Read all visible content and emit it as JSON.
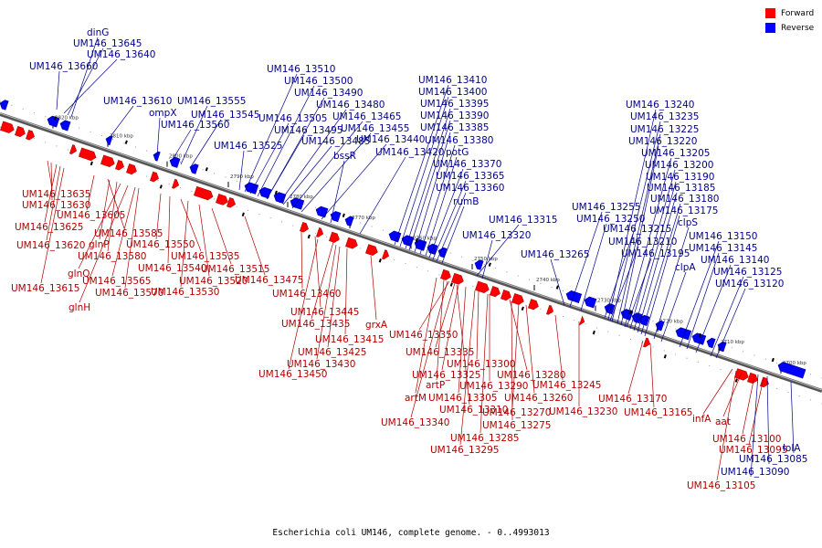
{
  "legend": [
    {
      "label": "Forward",
      "color": "#ff0000"
    },
    {
      "label": "Reverse",
      "color": "#0000ff"
    }
  ],
  "caption": "Escherichia coli UM146, complete genome. - 0..4993013",
  "colors": {
    "forward": "#ff0000",
    "reverse": "#0000ff",
    "backbone": "#888888",
    "forward_dark": "#b00000",
    "reverse_dark": "#00008b"
  },
  "ticks": [
    "2820 kbp",
    "2810 kbp",
    "2800 kbp",
    "2790 kbp",
    "2780 kbp",
    "2770 kbp",
    "2760 kbp",
    "2750 kbp",
    "2740 kbp",
    "2730 kbp",
    "2720 kbp",
    "2710 kbp",
    "2700 kbp"
  ],
  "forward_labels": [
    "UM146_13635",
    "UM146_13630",
    "UM146_13625",
    "UM146_13620",
    "UM146_13615",
    "UM146_13605",
    "UM146_13585",
    "glnP",
    "UM146_13580",
    "glnQ",
    "glnH",
    "UM146_13565",
    "UM146_13570",
    "UM146_13550",
    "UM146_13540",
    "UM146_13535",
    "UM146_13530",
    "UM146_13520",
    "UM146_13515",
    "UM146_13475",
    "UM146_13460",
    "UM146_13445",
    "UM146_13435",
    "grxA",
    "UM146_13415",
    "UM146_13425",
    "UM146_13430",
    "UM146_13450",
    "UM146_13350",
    "UM146_13335",
    "UM146_13325",
    "UM146_13300",
    "artP",
    "artM",
    "UM146_13305",
    "UM146_13290",
    "UM146_13280",
    "UM146_13260",
    "UM146_13310",
    "UM146_13270",
    "UM146_13340",
    "UM146_13275",
    "UM146_13285",
    "UM146_13295",
    "UM146_13245",
    "UM146_13230",
    "UM146_13170",
    "UM146_13165",
    "infA",
    "aat",
    "UM146_13100",
    "UM146_13095",
    "UM146_13105"
  ],
  "reverse_labels": [
    "dinG",
    "UM146_13645",
    "UM146_13640",
    "UM146_13660",
    "UM146_13610",
    "ompX",
    "UM146_13555",
    "UM146_13545",
    "UM146_13560",
    "UM146_13510",
    "UM146_13500",
    "UM146_13490",
    "UM146_13480",
    "UM146_13505",
    "UM146_13465",
    "UM146_13495",
    "UM146_13455",
    "UM146_13485",
    "UM146_13440",
    "UM146_13525",
    "bssR",
    "UM146_13420",
    "UM146_13410",
    "UM146_13400",
    "UM146_13395",
    "UM146_13390",
    "UM146_13385",
    "UM146_13380",
    "potG",
    "UM146_13370",
    "UM146_13365",
    "UM146_13360",
    "rumB",
    "UM146_13315",
    "UM146_13320",
    "UM146_13265",
    "UM146_13255",
    "UM146_13250",
    "UM146_13240",
    "UM146_13235",
    "UM146_13225",
    "UM146_13220",
    "UM146_13205",
    "UM146_13200",
    "UM146_13190",
    "UM146_13185",
    "UM146_13180",
    "UM146_13175",
    "clpS",
    "UM146_13215",
    "UM146_13210",
    "UM146_13195",
    "clpA",
    "UM146_13150",
    "UM146_13145",
    "UM146_13140",
    "UM146_13125",
    "UM146_13120",
    "lolA",
    "UM146_13085",
    "UM146_13090"
  ]
}
